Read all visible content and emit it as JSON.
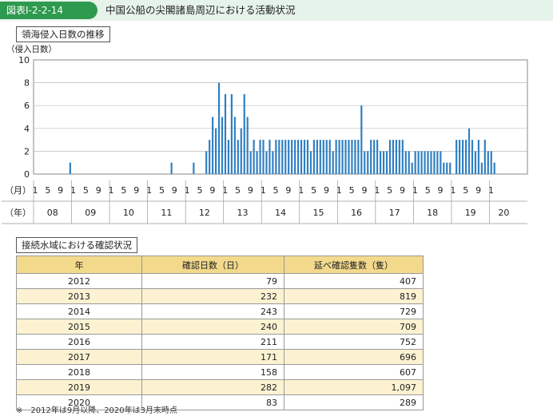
{
  "header": {
    "figure_number": "図表Ⅰ-2-2-14",
    "title": "中国公船の尖閣諸島周辺における活動状況"
  },
  "chart_data": {
    "type": "bar",
    "title": "領海侵入日数の推移",
    "ylabel": "（侵入日数）",
    "ylim": [
      0,
      10
    ],
    "yticks": [
      0,
      2,
      4,
      6,
      8,
      10
    ],
    "month_axis_label": "（月）",
    "year_axis_label": "（年）",
    "month_tick_labels": [
      "1",
      "5",
      "9"
    ],
    "final_month_tick": "1",
    "year_labels": [
      "08",
      "09",
      "10",
      "11",
      "12",
      "13",
      "14",
      "15",
      "16",
      "17",
      "18",
      "19",
      "20"
    ],
    "start_year_month": "2008-01",
    "color": "#2f7fc1",
    "values": [
      0,
      0,
      0,
      0,
      0,
      0,
      0,
      0,
      0,
      0,
      0,
      1,
      0,
      0,
      0,
      0,
      0,
      0,
      0,
      0,
      0,
      0,
      0,
      0,
      0,
      0,
      0,
      0,
      0,
      0,
      0,
      0,
      0,
      0,
      0,
      0,
      0,
      0,
      0,
      0,
      0,
      0,
      0,
      1,
      0,
      0,
      0,
      0,
      0,
      0,
      1,
      0,
      0,
      0,
      2,
      3,
      5,
      4,
      8,
      5,
      7,
      3,
      7,
      5,
      3,
      4,
      7,
      5,
      2,
      3,
      2,
      3,
      3,
      2,
      3,
      2,
      3,
      3,
      3,
      3,
      3,
      3,
      3,
      3,
      3,
      3,
      3,
      2,
      3,
      3,
      3,
      3,
      3,
      3,
      2,
      3,
      3,
      3,
      3,
      3,
      3,
      3,
      3,
      6,
      2,
      2,
      3,
      3,
      3,
      2,
      2,
      2,
      3,
      3,
      3,
      3,
      3,
      2,
      2,
      1,
      2,
      2,
      2,
      2,
      2,
      2,
      2,
      2,
      2,
      1,
      1,
      1,
      0,
      3,
      3,
      3,
      3,
      4,
      3,
      2,
      3,
      1,
      3,
      2,
      2,
      1,
      0
    ]
  },
  "table_section_title": "接続水域における確認状況",
  "table": {
    "headers": [
      "年",
      "確認日数（日）",
      "延べ確認隻数（隻）"
    ],
    "rows": [
      [
        "2012",
        "79",
        "407"
      ],
      [
        "2013",
        "232",
        "819"
      ],
      [
        "2014",
        "243",
        "729"
      ],
      [
        "2015",
        "240",
        "709"
      ],
      [
        "2016",
        "211",
        "752"
      ],
      [
        "2017",
        "171",
        "696"
      ],
      [
        "2018",
        "158",
        "607"
      ],
      [
        "2019",
        "282",
        "1,097"
      ],
      [
        "2020",
        "83",
        "289"
      ]
    ]
  },
  "footnote": "※　2012年は9月以降、2020年は3月末時点"
}
